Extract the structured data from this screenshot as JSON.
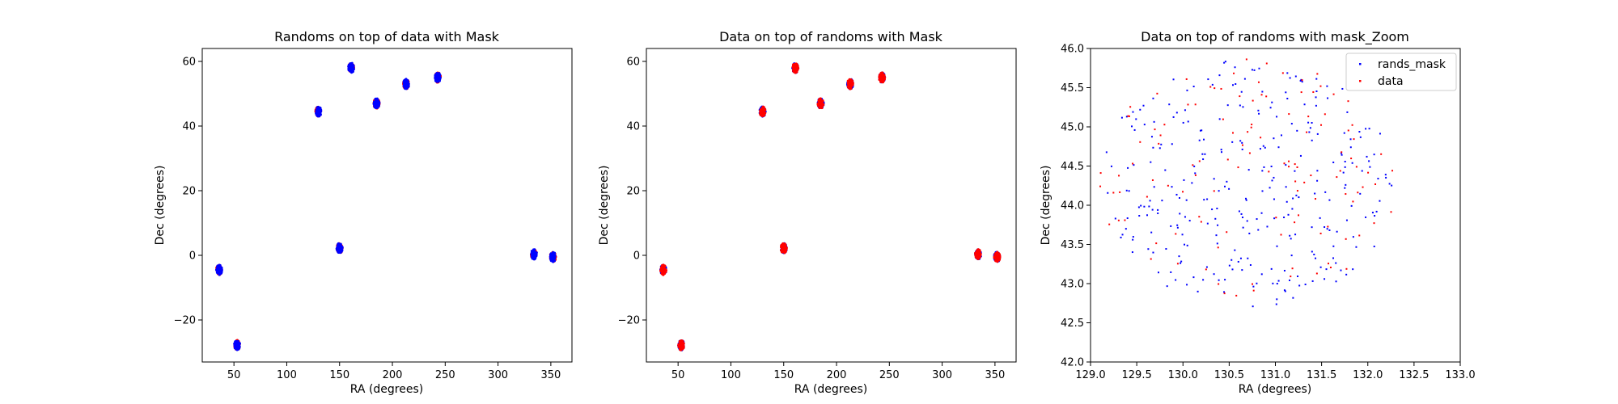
{
  "chart_data": [
    {
      "type": "scatter",
      "title": "Randoms on top of data with Mask",
      "xlabel": "RA (degrees)",
      "ylabel": "Dec (degrees)",
      "xlim": [
        20,
        370
      ],
      "ylim": [
        -33,
        64
      ],
      "xticks": [
        50,
        100,
        150,
        200,
        250,
        300,
        350
      ],
      "yticks": [
        -20,
        0,
        20,
        40,
        60
      ],
      "grid": false,
      "draw_order": [
        "red",
        "blue"
      ],
      "colors": {
        "red": "#ff0000",
        "blue": "#0000ff"
      },
      "series": [
        {
          "color": "blue",
          "clusters": [
            {
              "ra": 36,
              "dec": -4.5
            },
            {
              "ra": 53,
              "dec": -27.8
            },
            {
              "ra": 130,
              "dec": 44.5
            },
            {
              "ra": 150,
              "dec": 2.2
            },
            {
              "ra": 161,
              "dec": 58.0
            },
            {
              "ra": 185,
              "dec": 47.0
            },
            {
              "ra": 213,
              "dec": 53.0
            },
            {
              "ra": 243,
              "dec": 55.0
            },
            {
              "ra": 334,
              "dec": 0.3
            },
            {
              "ra": 352,
              "dec": -0.5
            }
          ]
        }
      ]
    },
    {
      "type": "scatter",
      "title": "Data on top of randoms with Mask",
      "xlabel": "RA (degrees)",
      "ylabel": "Dec (degrees)",
      "xlim": [
        20,
        370
      ],
      "ylim": [
        -33,
        64
      ],
      "xticks": [
        50,
        100,
        150,
        200,
        250,
        300,
        350
      ],
      "yticks": [
        -20,
        0,
        20,
        40,
        60
      ],
      "grid": false,
      "draw_order": [
        "blue",
        "red"
      ],
      "colors": {
        "red": "#ff0000",
        "blue": "#0000ff"
      },
      "series": [
        {
          "color": "red",
          "clusters": [
            {
              "ra": 36,
              "dec": -4.5
            },
            {
              "ra": 53,
              "dec": -27.8
            },
            {
              "ra": 130,
              "dec": 44.5
            },
            {
              "ra": 150,
              "dec": 2.2
            },
            {
              "ra": 161,
              "dec": 58.0
            },
            {
              "ra": 185,
              "dec": 47.0
            },
            {
              "ra": 213,
              "dec": 53.0
            },
            {
              "ra": 243,
              "dec": 55.0
            },
            {
              "ra": 334,
              "dec": 0.3
            },
            {
              "ra": 352,
              "dec": -0.5
            }
          ]
        }
      ]
    },
    {
      "type": "scatter",
      "title": "Data on top of randoms with mask_Zoom",
      "xlabel": "RA (degrees)",
      "ylabel": "Dec (degrees)",
      "xlim": [
        129.0,
        133.0
      ],
      "ylim": [
        42.0,
        46.0
      ],
      "xticks": [
        "129.0",
        "129.5",
        "130.0",
        "130.5",
        "131.0",
        "131.5",
        "132.0",
        "132.5",
        "133.0"
      ],
      "yticks": [
        "42.0",
        "42.5",
        "43.0",
        "43.5",
        "44.0",
        "44.5",
        "45.0",
        "45.5",
        "46.0"
      ],
      "grid": false,
      "legend": {
        "placement": "top-right"
      },
      "region": {
        "center": [
          130.7,
          44.3
        ],
        "radius": 1.6
      },
      "series": [
        {
          "name": "rands_mask",
          "color": "#0000ff",
          "count": 300
        },
        {
          "name": "data",
          "color": "#ff0000",
          "count": 120
        }
      ]
    }
  ]
}
